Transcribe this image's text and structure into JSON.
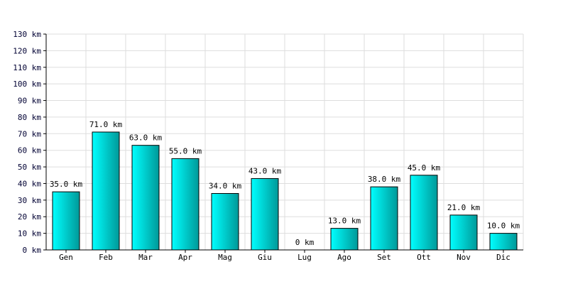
{
  "chart_data": {
    "type": "bar",
    "title": "",
    "xlabel": "",
    "ylabel": "",
    "unit": "km",
    "categories": [
      "Gen",
      "Feb",
      "Mar",
      "Apr",
      "Mag",
      "Giu",
      "Lug",
      "Ago",
      "Set",
      "Ott",
      "Nov",
      "Dic"
    ],
    "values": [
      35,
      71,
      63,
      55,
      34,
      43,
      0,
      13,
      38,
      45,
      21,
      10
    ],
    "value_labels": [
      "35.0 km",
      "71.0 km",
      "63.0 km",
      "55.0 km",
      "34.0 km",
      "43.0 km",
      "0 km",
      "13.0 km",
      "38.0 km",
      "45.0 km",
      "21.0 km",
      "10.0 km"
    ],
    "ylim": [
      0,
      130
    ],
    "yticks": [
      0,
      10,
      20,
      30,
      40,
      50,
      60,
      70,
      80,
      90,
      100,
      110,
      120,
      130
    ],
    "ytick_labels": [
      "0 km",
      "10 km",
      "20 km",
      "30 km",
      "40 km",
      "50 km",
      "60 km",
      "70 km",
      "80 km",
      "90 km",
      "100 km",
      "110 km",
      "120 km",
      "130 km"
    ],
    "grid": true,
    "legend": "none",
    "colors": {
      "bar_light": "#00ffff",
      "bar_dark": "#009999",
      "bar_outline": "#000000",
      "grid": "#dddddd",
      "axis": "#000000"
    }
  }
}
